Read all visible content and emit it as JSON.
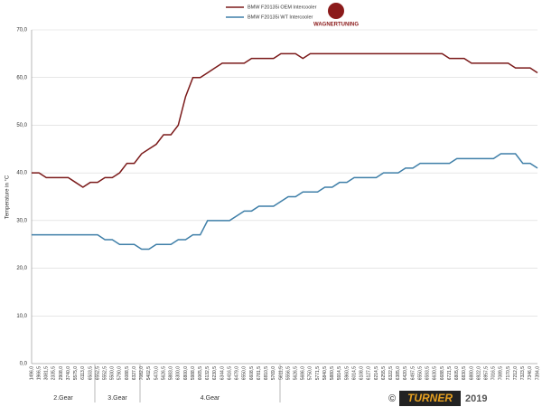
{
  "chart_data": {
    "type": "line",
    "y_label": "Temperature in °C",
    "logo": "WAGNERTUNING",
    "footer": {
      "copyright": "©",
      "brand": "TURNER",
      "year": "2019"
    },
    "gears": [
      "2.Gear",
      "3.Gear",
      "4.Gear"
    ],
    "categories": [
      "1496,0",
      "1966,5",
      "3081,5",
      "2335,5",
      "2908,0",
      "3740,0",
      "5575,0",
      "6113,0",
      "6503,5",
      "6552,5",
      "5552,5",
      "5500,0",
      "5790,0",
      "6088,5",
      "6327,0",
      "7082,0",
      "5402,5",
      "5470,0",
      "5626,5",
      "5883,0",
      "6300,0",
      "6800,0",
      "5988,0",
      "6065,5",
      "6132,5",
      "6230,5",
      "6344,0",
      "6416,5",
      "6479,0",
      "6550,0",
      "6608,5",
      "6781,5",
      "6810,5",
      "5769,0",
      "5611,5",
      "5556,5",
      "5626,5",
      "5686,0",
      "5750,0",
      "5771,5",
      "5840,5",
      "5880,5",
      "5914,5",
      "5960,5",
      "6014,5",
      "6108,0",
      "6127,0",
      "6214,5",
      "6255,5",
      "6322,5",
      "6385,0",
      "6420,5",
      "6497,5",
      "6550,5",
      "6593,5",
      "6630,5",
      "6688,5",
      "6721,5",
      "6805,0",
      "6830,5",
      "6880,0",
      "6922,0",
      "6957,5",
      "7016,5",
      "7089,5",
      "7170,5",
      "7212,0",
      "7323,5",
      "7346,0",
      "7394,0"
    ],
    "series": [
      {
        "name": "BMW F20135i OEM Intercooler",
        "color": "#7b1a1a",
        "values": [
          40,
          40,
          39,
          39,
          39,
          39,
          38,
          37,
          38,
          38,
          39,
          39,
          40,
          42,
          42,
          44,
          45,
          46,
          48,
          48,
          50,
          56,
          60,
          60,
          61,
          62,
          63,
          63,
          63,
          63,
          64,
          64,
          64,
          64,
          65,
          65,
          65,
          64,
          65,
          65,
          65,
          65,
          65,
          65,
          65,
          65,
          65,
          65,
          65,
          65,
          65,
          65,
          65,
          65,
          65,
          65,
          65,
          64,
          64,
          64,
          63,
          63,
          63,
          63,
          63,
          63,
          62,
          62,
          62,
          61
        ]
      },
      {
        "name": "BMW F20135i WT Intercooler",
        "color": "#3f7fa8",
        "values": [
          27,
          27,
          27,
          27,
          27,
          27,
          27,
          27,
          27,
          27,
          26,
          26,
          25,
          25,
          25,
          24,
          24,
          25,
          25,
          25,
          26,
          26,
          27,
          27,
          30,
          30,
          30,
          30,
          31,
          32,
          32,
          33,
          33,
          33,
          34,
          35,
          35,
          36,
          36,
          36,
          37,
          37,
          38,
          38,
          39,
          39,
          39,
          39,
          40,
          40,
          40,
          41,
          41,
          42,
          42,
          42,
          42,
          42,
          43,
          43,
          43,
          43,
          43,
          43,
          44,
          44,
          44,
          42,
          42,
          41
        ]
      }
    ],
    "ylim": [
      0,
      70
    ],
    "yticks": [
      {
        "value": 0,
        "label": "0,0"
      },
      {
        "value": 10,
        "label": "10,0"
      },
      {
        "value": 20,
        "label": "20,0"
      },
      {
        "value": 30,
        "label": "30,0"
      },
      {
        "value": 40,
        "label": "40,0"
      },
      {
        "value": 50,
        "label": "50,0"
      },
      {
        "value": 60,
        "label": "60,0"
      },
      {
        "value": 70,
        "label": "70,0"
      }
    ],
    "grid": true
  }
}
